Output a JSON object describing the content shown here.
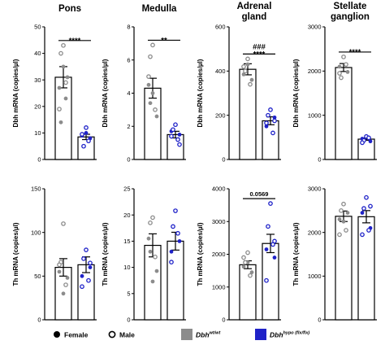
{
  "colors": {
    "control_bar": "#ffffff",
    "control_points": "#8c8c8c",
    "hypo_points": "#1f22c8",
    "legend_control_swatch": "#8c8c8c",
    "legend_hypo_swatch": "#1f22c8",
    "axis": "#000000"
  },
  "legend": {
    "female": "Female",
    "male": "Male",
    "control_name": "Dbh",
    "control_sup": "wt/wt",
    "hypo_name": "Dbh",
    "hypo_sup": "hypo (flx/flx)"
  },
  "chart_data": [
    {
      "type": "bar",
      "title": "Pons",
      "ylabel": "Dbh mRNA (copies/µl)",
      "ylim": [
        0,
        50
      ],
      "yticks": [
        "0",
        "10",
        "20",
        "30",
        "40",
        "50"
      ],
      "significance": [
        "****"
      ],
      "series": [
        {
          "name": "Dbh wt/wt",
          "mean": 31,
          "sem": 4,
          "female": [
            27,
            31,
            35,
            14,
            23
          ],
          "male": [
            43,
            40,
            29,
            19
          ]
        },
        {
          "name": "Dbh hypo (flx/flx)",
          "mean": 8.5,
          "sem": 1,
          "female": [
            9,
            8,
            10
          ],
          "male": [
            12,
            5,
            7,
            9.5
          ]
        }
      ]
    },
    {
      "type": "bar",
      "title": "Medulla",
      "ylabel": "Dbh mRNA (copies/µl)",
      "ylim": [
        0,
        8
      ],
      "yticks": [
        "0",
        "2",
        "4",
        "6",
        "8"
      ],
      "significance": [
        "**"
      ],
      "series": [
        {
          "name": "Dbh wt/wt",
          "mean": 4.3,
          "sem": 0.6,
          "female": [
            4.5,
            2.6,
            4.0,
            3.4
          ],
          "male": [
            6.9,
            6.2,
            3.0,
            5.0
          ]
        },
        {
          "name": "Dbh hypo (flx/flx)",
          "mean": 1.5,
          "sem": 0.2,
          "female": [
            1.7,
            1.5
          ],
          "male": [
            2.1,
            1.8,
            1.2,
            1.4,
            0.9
          ]
        }
      ]
    },
    {
      "type": "bar",
      "title": "Adrenal gland",
      "ylabel": "Dbh mRNA (copies/µl)",
      "ylim": [
        0,
        600
      ],
      "yticks": [
        "0",
        "200",
        "400",
        "600"
      ],
      "significance": [
        "###",
        "****"
      ],
      "series": [
        {
          "name": "Dbh wt/wt",
          "mean": 408,
          "sem": 25,
          "female": [
            385,
            360,
            430
          ],
          "male": [
            455,
            400,
            340,
            420
          ]
        },
        {
          "name": "Dbh hypo (flx/flx)",
          "mean": 175,
          "sem": 18,
          "female": [
            150,
            190
          ],
          "male": [
            225,
            200,
            120,
            165,
            175
          ]
        }
      ]
    },
    {
      "type": "bar",
      "title": "Stellate ganglion",
      "ylabel": "Dbh mRNA (copies/µl)",
      "ylim": [
        0,
        3000
      ],
      "yticks": [
        "0",
        "1000",
        "2000",
        "3000"
      ],
      "significance": [
        "****"
      ],
      "series": [
        {
          "name": "Dbh wt/wt",
          "mean": 2080,
          "sem": 90,
          "female": [
            2100,
            1980
          ],
          "male": [
            2320,
            1850,
            2150,
            1950
          ]
        },
        {
          "name": "Dbh hypo (flx/flx)",
          "mean": 460,
          "sem": 25,
          "female": [
            470,
            410
          ],
          "male": [
            520,
            430,
            490,
            380
          ]
        }
      ]
    },
    {
      "type": "bar",
      "title": "",
      "ylabel": "Th mRNA (copies/µl)",
      "ylim": [
        0,
        150
      ],
      "yticks": [
        "0",
        "50",
        "100",
        "150"
      ],
      "significance": [],
      "series": [
        {
          "name": "Dbh wt/wt",
          "mean": 60,
          "sem": 10,
          "female": [
            55,
            48,
            30
          ],
          "male": [
            110,
            66,
            40,
            63
          ]
        },
        {
          "name": "Dbh hypo (flx/flx)",
          "mean": 63,
          "sem": 9,
          "female": [
            50,
            60
          ],
          "male": [
            80,
            70,
            45,
            38,
            65
          ]
        }
      ]
    },
    {
      "type": "bar",
      "title": "",
      "ylabel": "Th mRNA (copies/µl)",
      "ylim": [
        0,
        25
      ],
      "yticks": [
        "0",
        "5",
        "10",
        "15",
        "20",
        "25"
      ],
      "significance": [],
      "series": [
        {
          "name": "Dbh wt/wt",
          "mean": 14.2,
          "sem": 2.2,
          "female": [
            15.5,
            9.3,
            7.3,
            13.0
          ],
          "male": [
            19.5,
            18.5,
            12.0
          ]
        },
        {
          "name": "Dbh hypo (flx/flx)",
          "mean": 15.0,
          "sem": 1.7,
          "female": [
            13.0,
            15.0
          ],
          "male": [
            20.8,
            17.8,
            16.5,
            11.0
          ]
        }
      ]
    },
    {
      "type": "bar",
      "title": "",
      "ylabel": "Th mRNA (copies/µl)",
      "ylim": [
        0,
        4000
      ],
      "yticks": [
        "0",
        "1000",
        "2000",
        "3000",
        "4000"
      ],
      "significance": [
        "0.0569"
      ],
      "series": [
        {
          "name": "Dbh wt/wt",
          "mean": 1680,
          "sem": 120,
          "female": [
            1620,
            1450,
            1750
          ],
          "male": [
            2050,
            1750,
            1350,
            1900
          ]
        },
        {
          "name": "Dbh hypo (flx/flx)",
          "mean": 2330,
          "sem": 280,
          "female": [
            2150,
            1900
          ],
          "male": [
            3550,
            2850,
            2300,
            1200,
            2400
          ]
        }
      ]
    },
    {
      "type": "bar",
      "title": "",
      "ylabel": "Th mRNA (copies/µl)",
      "ylim": [
        0,
        3000
      ],
      "yticks": [
        "0",
        "1000",
        "2000",
        "3000"
      ],
      "significance": [],
      "series": [
        {
          "name": "Dbh wt/wt",
          "mean": 2370,
          "sem": 120,
          "female": [
            2300,
            2450,
            2250
          ],
          "male": [
            2650,
            2500,
            2050,
            1950
          ]
        },
        {
          "name": "Dbh hypo (flx/flx)",
          "mean": 2360,
          "sem": 140,
          "female": [
            2450,
            2100
          ],
          "male": [
            2800,
            2550,
            2050,
            1950,
            2600
          ]
        }
      ]
    }
  ]
}
